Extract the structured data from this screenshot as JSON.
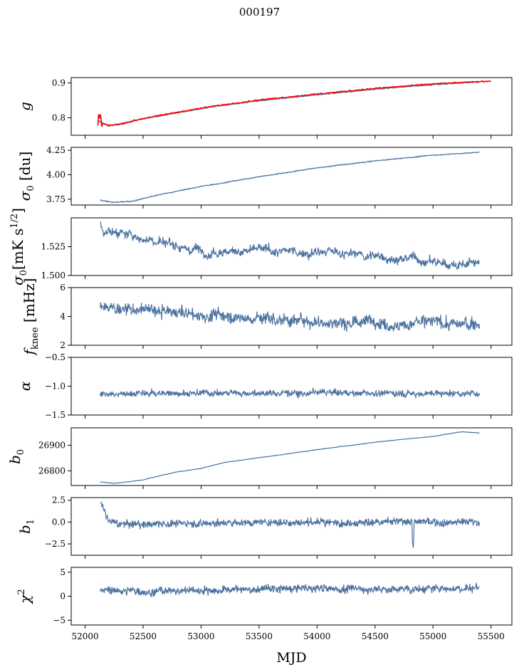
{
  "figure": {
    "title": "000197",
    "xlabel": "MJD"
  },
  "x_axis": {
    "range": [
      51880,
      55680
    ],
    "ticks": [
      52000,
      52500,
      53000,
      53500,
      54000,
      54500,
      55000,
      55500
    ],
    "tick_labels": [
      "52000",
      "52500",
      "53000",
      "53500",
      "54000",
      "54500",
      "55000",
      "55500"
    ]
  },
  "colors": {
    "series": "#4c72a0",
    "overlay": "#ff0000"
  },
  "chart_data": [
    {
      "type": "line",
      "ylabel": "g",
      "ylim": [
        0.75,
        0.915
      ],
      "yticks": [
        0.8,
        0.9
      ],
      "ytick_labels": [
        "0.8",
        "0.9"
      ],
      "x_span": [
        52110,
        55400
      ],
      "series_points": [
        [
          52110,
          0.792
        ],
        [
          52200,
          0.777
        ],
        [
          52300,
          0.781
        ],
        [
          52500,
          0.797
        ],
        [
          52800,
          0.815
        ],
        [
          53100,
          0.832
        ],
        [
          53500,
          0.849
        ],
        [
          54000,
          0.866
        ],
        [
          54500,
          0.882
        ],
        [
          55000,
          0.895
        ],
        [
          55400,
          0.903
        ]
      ],
      "overlay": {
        "x_span": [
          52110,
          55500
        ],
        "points": [
          [
            52110,
            0.79
          ],
          [
            52200,
            0.778
          ],
          [
            52300,
            0.782
          ],
          [
            52500,
            0.798
          ],
          [
            52800,
            0.816
          ],
          [
            53100,
            0.833
          ],
          [
            53500,
            0.851
          ],
          [
            54000,
            0.868
          ],
          [
            54500,
            0.884
          ],
          [
            55000,
            0.897
          ],
          [
            55500,
            0.905
          ]
        ]
      }
    },
    {
      "type": "line",
      "ylabel": "σ0 [du]",
      "ylim": [
        3.69,
        4.28
      ],
      "yticks": [
        3.75,
        4.0,
        4.25
      ],
      "ytick_labels": [
        "3.75",
        "4.00",
        "4.25"
      ],
      "x_span": [
        52130,
        55400
      ],
      "series_points": [
        [
          52130,
          3.74
        ],
        [
          52250,
          3.715
        ],
        [
          52400,
          3.73
        ],
        [
          52700,
          3.81
        ],
        [
          53000,
          3.88
        ],
        [
          53500,
          3.98
        ],
        [
          54000,
          4.07
        ],
        [
          54500,
          4.14
        ],
        [
          55000,
          4.2
        ],
        [
          55400,
          4.23
        ]
      ]
    },
    {
      "type": "line",
      "ylabel": "σ0[mK s^1/2]",
      "ylim": [
        1.5,
        1.55
      ],
      "yticks": [
        1.5,
        1.525
      ],
      "ytick_labels": [
        "1.500",
        "1.525"
      ],
      "x_span": [
        52130,
        55400
      ],
      "series_points": [
        [
          52130,
          1.541
        ],
        [
          52400,
          1.533
        ],
        [
          52700,
          1.528
        ],
        [
          53000,
          1.525
        ],
        [
          53500,
          1.521
        ],
        [
          54000,
          1.519
        ],
        [
          54500,
          1.516
        ],
        [
          55000,
          1.513
        ],
        [
          55400,
          1.509
        ]
      ]
    },
    {
      "type": "line",
      "ylabel": "f_knee [mHz]",
      "ylim": [
        2,
        6
      ],
      "yticks": [
        2,
        4,
        6
      ],
      "ytick_labels": [
        "2",
        "4",
        "6"
      ],
      "x_span": [
        52130,
        55400
      ],
      "series_points": [
        [
          52130,
          4.7
        ],
        [
          52500,
          4.4
        ],
        [
          53000,
          4.1
        ],
        [
          53500,
          3.9
        ],
        [
          54000,
          3.7
        ],
        [
          54500,
          3.6
        ],
        [
          55000,
          3.5
        ],
        [
          55400,
          3.4
        ]
      ]
    },
    {
      "type": "line",
      "ylabel": "α",
      "ylim": [
        -1.5,
        -0.5
      ],
      "yticks": [
        -1.5,
        -1.0,
        -0.5
      ],
      "ytick_labels": [
        "−1.5",
        "−1.0",
        "−0.5"
      ],
      "x_span": [
        52130,
        55400
      ],
      "series_points": [
        [
          52130,
          -1.13
        ],
        [
          53000,
          -1.12
        ],
        [
          54000,
          -1.11
        ],
        [
          55000,
          -1.12
        ],
        [
          55400,
          -1.12
        ]
      ]
    },
    {
      "type": "line",
      "ylabel": "b0",
      "ylim": [
        26743,
        26968
      ],
      "yticks": [
        26800,
        26900
      ],
      "ytick_labels": [
        "26800",
        "26900"
      ],
      "x_span": [
        52130,
        55400
      ],
      "series_points": [
        [
          52130,
          26757
        ],
        [
          52250,
          26752
        ],
        [
          52500,
          26765
        ],
        [
          52800,
          26797
        ],
        [
          53000,
          26810
        ],
        [
          53200,
          26832
        ],
        [
          53600,
          26858
        ],
        [
          54000,
          26883
        ],
        [
          54500,
          26912
        ],
        [
          55000,
          26935
        ],
        [
          55250,
          26953
        ],
        [
          55400,
          26948
        ]
      ]
    },
    {
      "type": "line",
      "ylabel": "b1",
      "ylim": [
        -3.8,
        2.8
      ],
      "yticks": [
        -2.5,
        0.0,
        2.5
      ],
      "ytick_labels": [
        "−2.5",
        "0.0",
        "2.5"
      ],
      "x_span": [
        52130,
        55400
      ],
      "series_points": [
        [
          52130,
          2.3
        ],
        [
          52200,
          0.2
        ],
        [
          52300,
          -0.3
        ],
        [
          53000,
          -0.1
        ],
        [
          54000,
          0.0
        ],
        [
          55000,
          0.0
        ],
        [
          55400,
          0.0
        ]
      ]
    },
    {
      "type": "line",
      "ylabel": "χ²",
      "ylim": [
        -6,
        6
      ],
      "yticks": [
        -5,
        0,
        5
      ],
      "ytick_labels": [
        "−5",
        "0",
        "5"
      ],
      "x_span": [
        52130,
        55400
      ],
      "series_points": [
        [
          52130,
          1.0
        ],
        [
          53000,
          1.3
        ],
        [
          54000,
          1.5
        ],
        [
          55000,
          1.5
        ],
        [
          55400,
          1.7
        ]
      ]
    }
  ]
}
